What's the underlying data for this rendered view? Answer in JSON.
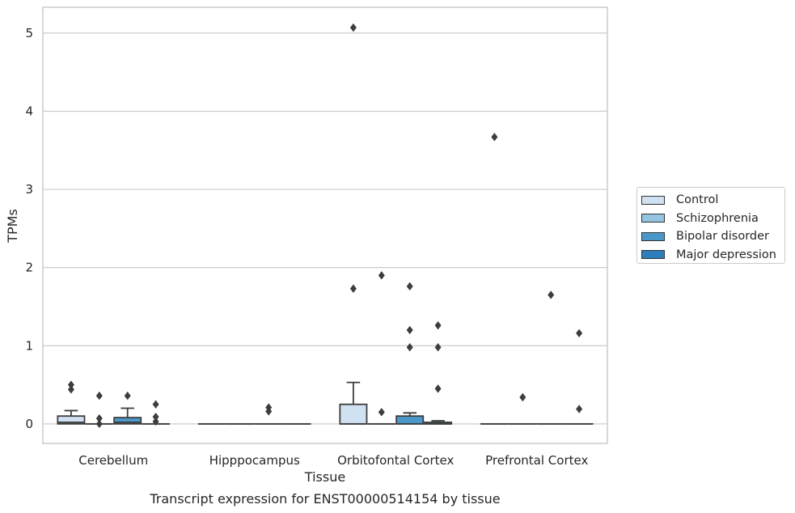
{
  "chart_data": {
    "type": "box",
    "xlabel": "Tissue",
    "ylabel": "TPMs",
    "caption": "Transcript expression for ENST00000514154 by tissue",
    "categories": [
      "Cerebellum",
      "Hipppocampus",
      "Orbitofontal Cortex",
      "Prefrontal Cortex"
    ],
    "yticks": [
      0,
      1,
      2,
      3,
      4,
      5
    ],
    "ylim": [
      -0.25,
      5.33
    ],
    "grid": true,
    "legend_position": "right",
    "series": [
      {
        "name": "Control",
        "color": "#d0e1f2",
        "boxes": [
          {
            "q1": 0,
            "median": 0.02,
            "q3": 0.1,
            "whisker_low": 0,
            "whisker_high": 0.17,
            "outliers": [
              0.44,
              0.5
            ]
          },
          {
            "q1": 0,
            "median": 0,
            "q3": 0,
            "whisker_low": 0,
            "whisker_high": 0,
            "outliers": []
          },
          {
            "q1": 0,
            "median": 0,
            "q3": 0.25,
            "whisker_low": 0,
            "whisker_high": 0.53,
            "outliers": [
              1.73,
              5.07
            ]
          },
          {
            "q1": 0,
            "median": 0,
            "q3": 0,
            "whisker_low": 0,
            "whisker_high": 0,
            "outliers": [
              3.67
            ]
          }
        ]
      },
      {
        "name": "Schizophrenia",
        "color": "#94c4df",
        "boxes": [
          {
            "q1": 0,
            "median": 0,
            "q3": 0,
            "whisker_low": 0,
            "whisker_high": 0,
            "outliers": [
              0.0,
              0.07,
              0.36
            ]
          },
          {
            "q1": 0,
            "median": 0,
            "q3": 0,
            "whisker_low": 0,
            "whisker_high": 0,
            "outliers": []
          },
          {
            "q1": 0,
            "median": 0,
            "q3": 0,
            "whisker_low": 0,
            "whisker_high": 0,
            "outliers": [
              0.15,
              1.9
            ]
          },
          {
            "q1": 0,
            "median": 0,
            "q3": 0,
            "whisker_low": 0,
            "whisker_high": 0,
            "outliers": [
              0.34
            ]
          }
        ]
      },
      {
        "name": "Bipolar disorder",
        "color": "#4a98c9",
        "boxes": [
          {
            "q1": 0,
            "median": 0.02,
            "q3": 0.08,
            "whisker_low": 0,
            "whisker_high": 0.2,
            "outliers": [
              0.36
            ]
          },
          {
            "q1": 0,
            "median": 0,
            "q3": 0,
            "whisker_low": 0,
            "whisker_high": 0,
            "outliers": [
              0.16,
              0.21
            ]
          },
          {
            "q1": 0,
            "median": 0,
            "q3": 0.1,
            "whisker_low": 0,
            "whisker_high": 0.14,
            "outliers": [
              0.98,
              1.2,
              1.76
            ]
          },
          {
            "q1": 0,
            "median": 0,
            "q3": 0,
            "whisker_low": 0,
            "whisker_high": 0,
            "outliers": [
              1.65
            ]
          }
        ]
      },
      {
        "name": "Major depression",
        "color": "#2e7ebc",
        "boxes": [
          {
            "q1": 0,
            "median": 0,
            "q3": 0,
            "whisker_low": 0,
            "whisker_high": 0,
            "outliers": [
              0.03,
              0.09,
              0.25
            ]
          },
          {
            "q1": 0,
            "median": 0,
            "q3": 0,
            "whisker_low": 0,
            "whisker_high": 0,
            "outliers": []
          },
          {
            "q1": 0,
            "median": 0,
            "q3": 0.02,
            "whisker_low": 0,
            "whisker_high": 0.04,
            "outliers": [
              0.45,
              0.98,
              1.26
            ]
          },
          {
            "q1": 0,
            "median": 0,
            "q3": 0,
            "whisker_low": 0,
            "whisker_high": 0,
            "outliers": [
              0.19,
              1.16
            ]
          }
        ]
      }
    ]
  }
}
